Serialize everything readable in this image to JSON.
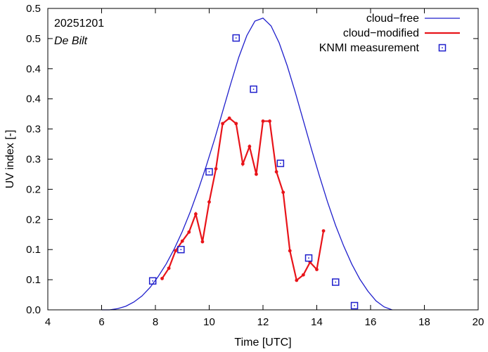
{
  "chart_data": {
    "type": "line",
    "annotation_date": "20251201",
    "annotation_station": "De Bilt",
    "xlabel": "Time  [UTC]",
    "ylabel": "UV index  [-]",
    "xlim": [
      4,
      20
    ],
    "ylim": [
      0,
      0.5
    ],
    "x_ticks": [
      4,
      6,
      8,
      10,
      12,
      14,
      16,
      18,
      20
    ],
    "y_ticks": [
      0,
      0.05,
      0.1,
      0.15,
      0.2,
      0.25,
      0.3,
      0.35,
      0.4,
      0.45,
      0.5
    ],
    "y_tick_labels": [
      "0.0",
      "0.1",
      "0.1",
      "0.2",
      "0.2",
      "0.3",
      "0.3",
      "0.4",
      "0.4",
      "0.5",
      "0.5"
    ],
    "grid": false,
    "legend_position": "top-right",
    "colors": {
      "cloud_free": "#1f1fcc",
      "cloud_modified": "#e8141a",
      "measurement": "#1f1fcc"
    },
    "series": [
      {
        "name": "cloud−free",
        "style": "line",
        "x": [
          6.0,
          6.3,
          6.6,
          6.9,
          7.2,
          7.5,
          7.8,
          8.1,
          8.4,
          8.7,
          9.0,
          9.3,
          9.6,
          9.9,
          10.2,
          10.5,
          10.8,
          11.1,
          11.4,
          11.7,
          12.0,
          12.3,
          12.6,
          12.9,
          13.2,
          13.5,
          13.8,
          14.1,
          14.4,
          14.7,
          15.0,
          15.3,
          15.6,
          15.9,
          16.2,
          16.5,
          16.8
        ],
        "y": [
          0.0,
          0.0,
          0.002,
          0.006,
          0.013,
          0.023,
          0.037,
          0.055,
          0.076,
          0.101,
          0.13,
          0.163,
          0.2,
          0.24,
          0.283,
          0.329,
          0.375,
          0.419,
          0.455,
          0.479,
          0.484,
          0.471,
          0.443,
          0.405,
          0.361,
          0.314,
          0.267,
          0.222,
          0.179,
          0.14,
          0.106,
          0.076,
          0.051,
          0.031,
          0.015,
          0.005,
          0.0
        ]
      },
      {
        "name": "cloud−modified",
        "style": "line-points",
        "x": [
          8.25,
          8.5,
          8.75,
          9.0,
          9.25,
          9.5,
          9.75,
          10.0,
          10.25,
          10.5,
          10.75,
          11.0,
          11.25,
          11.5,
          11.75,
          12.0,
          12.25,
          12.5,
          12.75,
          13.0,
          13.25,
          13.5,
          13.75,
          14.0,
          14.25
        ],
        "y": [
          0.052,
          0.069,
          0.098,
          0.114,
          0.129,
          0.159,
          0.113,
          0.179,
          0.234,
          0.309,
          0.318,
          0.309,
          0.242,
          0.271,
          0.225,
          0.313,
          0.313,
          0.229,
          0.195,
          0.098,
          0.049,
          0.058,
          0.079,
          0.067,
          0.131
        ]
      },
      {
        "name": "KNMI measurement",
        "style": "squares",
        "x": [
          7.9,
          8.95,
          10.0,
          11.0,
          11.65,
          12.65,
          13.7,
          14.7,
          15.4
        ],
        "y": [
          0.048,
          0.1,
          0.229,
          0.451,
          0.366,
          0.243,
          0.086,
          0.046,
          0.007
        ]
      }
    ]
  }
}
